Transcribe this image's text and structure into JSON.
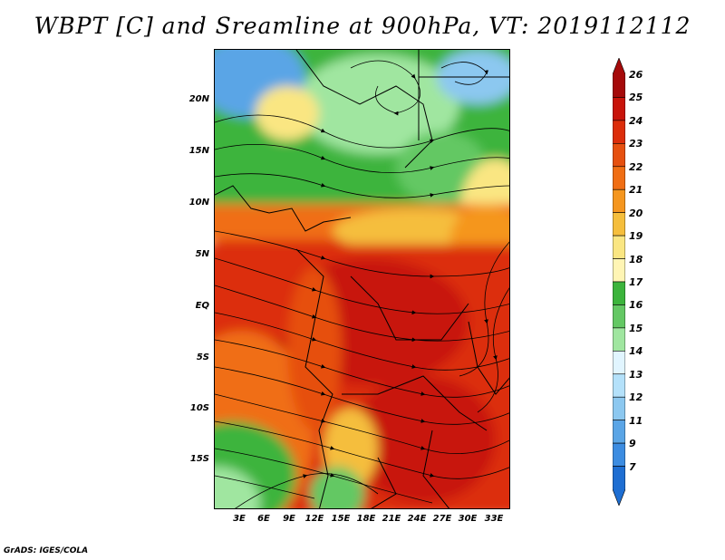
{
  "title": "WBPT [C] and Sreamline at 900hPa, VT: 2019112112",
  "footer": "GrADS: IGES/COLA",
  "y_ticks": [
    "20N",
    "15N",
    "10N",
    "5N",
    "EQ",
    "5S",
    "10S",
    "15S"
  ],
  "x_ticks": [
    "3E",
    "6E",
    "9E",
    "12E",
    "15E",
    "18E",
    "21E",
    "24E",
    "27E",
    "30E",
    "33E"
  ],
  "colorbar": {
    "labels": [
      "26",
      "25",
      "24",
      "23",
      "22",
      "21",
      "20",
      "19",
      "18",
      "17",
      "16",
      "15",
      "14",
      "13",
      "12",
      "11",
      "9",
      "7"
    ],
    "colors": [
      "#a50a0a",
      "#c8140a",
      "#dc2d0a",
      "#e6500f",
      "#f06e14",
      "#f5961e",
      "#f5be3c",
      "#fae682",
      "#fff5b4",
      "#3cb43c",
      "#64c864",
      "#a0e6a0",
      "#e1f5ff",
      "#b4e1fa",
      "#8cc8f0",
      "#5aa5e6",
      "#3c8ce1",
      "#1e6ed2"
    ]
  }
}
